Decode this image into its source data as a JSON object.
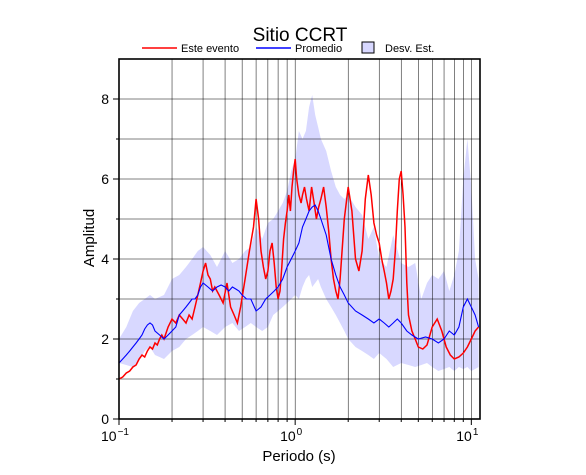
{
  "chart_data": {
    "type": "line",
    "title": "Sitio CCRT",
    "xlabel": "Periodo (s)",
    "ylabel": "Amplitud",
    "xscale": "log",
    "xlim": [
      0.1,
      11.2
    ],
    "ylim": [
      0,
      9
    ],
    "grid": true,
    "legend": "top",
    "x_ticks": [
      {
        "value": 0.1,
        "base": "10",
        "exp": "−1"
      },
      {
        "value": 1,
        "base": "10",
        "exp": "0"
      },
      {
        "value": 10,
        "base": "10",
        "exp": "1"
      }
    ],
    "y_ticks": [
      {
        "value": 0,
        "label": "0"
      },
      {
        "value": 2,
        "label": "2"
      },
      {
        "value": 4,
        "label": "4"
      },
      {
        "value": 6,
        "label": "6"
      },
      {
        "value": 8,
        "label": "8"
      }
    ],
    "legend_entries": [
      {
        "label": "Este evento",
        "color": "#ff0000",
        "kind": "line"
      },
      {
        "label": "Promedio",
        "color": "#0000ff",
        "kind": "line"
      },
      {
        "label": "Desv. Est.",
        "color": "#d8d8ff",
        "kind": "box"
      }
    ],
    "series": [
      {
        "name": "Este evento",
        "color": "#ff0000",
        "x": [
          0.1,
          0.105,
          0.11,
          0.115,
          0.12,
          0.125,
          0.13,
          0.135,
          0.14,
          0.145,
          0.15,
          0.155,
          0.16,
          0.165,
          0.17,
          0.175,
          0.18,
          0.19,
          0.2,
          0.21,
          0.22,
          0.23,
          0.24,
          0.25,
          0.26,
          0.27,
          0.28,
          0.29,
          0.3,
          0.31,
          0.32,
          0.33,
          0.34,
          0.35,
          0.37,
          0.39,
          0.41,
          0.43,
          0.45,
          0.47,
          0.49,
          0.52,
          0.55,
          0.58,
          0.6,
          0.62,
          0.64,
          0.66,
          0.68,
          0.7,
          0.72,
          0.74,
          0.76,
          0.78,
          0.8,
          0.82,
          0.84,
          0.86,
          0.88,
          0.9,
          0.92,
          0.94,
          0.96,
          0.98,
          1.0,
          1.02,
          1.05,
          1.08,
          1.1,
          1.13,
          1.16,
          1.2,
          1.24,
          1.28,
          1.32,
          1.36,
          1.4,
          1.45,
          1.5,
          1.55,
          1.6,
          1.65,
          1.7,
          1.75,
          1.8,
          1.9,
          2.0,
          2.1,
          2.2,
          2.3,
          2.4,
          2.5,
          2.6,
          2.7,
          2.8,
          2.9,
          3.0,
          3.1,
          3.2,
          3.3,
          3.4,
          3.5,
          3.6,
          3.7,
          3.8,
          3.9,
          4.0,
          4.1,
          4.2,
          4.3,
          4.4,
          4.6,
          4.8,
          5.0,
          5.3,
          5.6,
          6.0,
          6.4,
          6.8,
          7.2,
          7.6,
          8.0,
          8.5,
          9.0,
          9.5,
          10.0,
          10.5,
          11.0
        ],
        "y": [
          1.0,
          1.05,
          1.15,
          1.2,
          1.3,
          1.35,
          1.5,
          1.6,
          1.55,
          1.7,
          1.8,
          1.75,
          1.9,
          1.85,
          2.0,
          2.1,
          2.0,
          2.3,
          2.5,
          2.4,
          2.6,
          2.5,
          2.4,
          2.6,
          2.5,
          2.8,
          3.1,
          3.4,
          3.7,
          3.9,
          3.6,
          3.5,
          3.2,
          3.3,
          3.1,
          2.9,
          3.4,
          2.8,
          2.6,
          2.4,
          2.8,
          3.5,
          4.2,
          4.8,
          5.5,
          5.0,
          4.2,
          3.8,
          3.5,
          3.7,
          4.2,
          4.4,
          3.9,
          3.3,
          3.0,
          3.2,
          3.8,
          4.5,
          4.9,
          5.2,
          5.6,
          5.2,
          5.8,
          6.2,
          6.5,
          6.0,
          5.6,
          5.4,
          5.6,
          5.8,
          5.5,
          5.2,
          5.8,
          5.4,
          5.0,
          5.3,
          5.5,
          5.8,
          5.3,
          4.7,
          4.0,
          3.5,
          3.2,
          3.0,
          3.5,
          5.0,
          5.8,
          5.2,
          4.0,
          3.7,
          4.2,
          5.5,
          6.1,
          5.6,
          4.9,
          4.6,
          4.4,
          4.0,
          3.7,
          3.4,
          3.0,
          3.2,
          3.5,
          4.2,
          5.2,
          6.0,
          6.2,
          5.6,
          4.8,
          3.4,
          2.6,
          2.2,
          2.0,
          1.8,
          1.75,
          1.85,
          2.3,
          2.5,
          2.2,
          1.8,
          1.6,
          1.5,
          1.55,
          1.65,
          1.8,
          2.0,
          2.2,
          2.3
        ]
      },
      {
        "name": "Promedio",
        "color": "#0000ff",
        "x": [
          0.1,
          0.105,
          0.11,
          0.115,
          0.12,
          0.125,
          0.13,
          0.135,
          0.14,
          0.145,
          0.15,
          0.155,
          0.16,
          0.17,
          0.18,
          0.19,
          0.2,
          0.21,
          0.22,
          0.23,
          0.24,
          0.25,
          0.26,
          0.27,
          0.28,
          0.29,
          0.3,
          0.32,
          0.34,
          0.36,
          0.38,
          0.4,
          0.42,
          0.44,
          0.46,
          0.48,
          0.5,
          0.53,
          0.56,
          0.6,
          0.64,
          0.68,
          0.72,
          0.76,
          0.8,
          0.85,
          0.9,
          0.95,
          1.0,
          1.05,
          1.1,
          1.15,
          1.2,
          1.25,
          1.3,
          1.35,
          1.4,
          1.5,
          1.6,
          1.7,
          1.8,
          1.9,
          2.0,
          2.2,
          2.4,
          2.6,
          2.8,
          3.0,
          3.2,
          3.4,
          3.6,
          3.8,
          4.0,
          4.3,
          4.6,
          5.0,
          5.5,
          6.0,
          6.5,
          7.0,
          7.5,
          8.0,
          8.5,
          9.0,
          9.5,
          10.0,
          10.5,
          11.0
        ],
        "y": [
          1.4,
          1.5,
          1.6,
          1.7,
          1.8,
          1.9,
          2.0,
          2.1,
          2.25,
          2.35,
          2.4,
          2.35,
          2.2,
          2.1,
          2.0,
          2.1,
          2.2,
          2.3,
          2.6,
          2.7,
          2.8,
          2.9,
          3.0,
          3.0,
          3.1,
          3.3,
          3.4,
          3.3,
          3.2,
          3.3,
          3.35,
          3.3,
          3.2,
          3.3,
          3.25,
          3.2,
          3.1,
          3.0,
          3.0,
          2.7,
          2.8,
          3.0,
          3.1,
          3.2,
          3.3,
          3.5,
          3.8,
          4.0,
          4.2,
          4.4,
          4.8,
          5.0,
          5.2,
          5.3,
          5.35,
          5.2,
          5.0,
          4.6,
          4.0,
          3.6,
          3.3,
          3.1,
          2.9,
          2.7,
          2.6,
          2.5,
          2.4,
          2.5,
          2.4,
          2.3,
          2.4,
          2.5,
          2.4,
          2.2,
          2.1,
          2.0,
          2.05,
          2.0,
          1.9,
          2.0,
          2.2,
          2.1,
          2.3,
          2.8,
          3.0,
          2.8,
          2.6,
          2.3
        ]
      }
    ],
    "std_band": {
      "x": [
        0.1,
        0.11,
        0.12,
        0.13,
        0.14,
        0.15,
        0.16,
        0.18,
        0.2,
        0.22,
        0.24,
        0.26,
        0.28,
        0.3,
        0.33,
        0.36,
        0.4,
        0.44,
        0.48,
        0.52,
        0.56,
        0.6,
        0.65,
        0.7,
        0.75,
        0.8,
        0.85,
        0.9,
        0.95,
        1.0,
        1.05,
        1.1,
        1.15,
        1.2,
        1.25,
        1.3,
        1.35,
        1.4,
        1.5,
        1.6,
        1.7,
        1.8,
        1.9,
        2.0,
        2.2,
        2.4,
        2.6,
        2.8,
        3.0,
        3.3,
        3.6,
        4.0,
        4.4,
        4.8,
        5.2,
        5.6,
        6.0,
        6.5,
        7.0,
        7.5,
        8.0,
        8.5,
        9.0,
        9.5,
        10.0,
        10.5,
        11.0
      ],
      "lower": [
        1.4,
        1.35,
        1.3,
        1.45,
        1.7,
        1.8,
        1.6,
        1.5,
        1.7,
        1.8,
        2.0,
        2.1,
        2.2,
        2.3,
        2.2,
        2.1,
        2.3,
        2.4,
        2.2,
        2.3,
        2.4,
        2.3,
        2.2,
        2.3,
        2.6,
        2.7,
        2.8,
        2.9,
        3.0,
        3.1,
        3.0,
        3.3,
        3.5,
        3.6,
        3.3,
        3.4,
        3.5,
        3.3,
        3.0,
        2.8,
        2.6,
        2.4,
        2.2,
        2.0,
        1.8,
        1.7,
        1.6,
        1.5,
        1.65,
        1.5,
        1.3,
        1.4,
        1.35,
        1.3,
        1.35,
        1.4,
        1.3,
        1.2,
        1.25,
        1.3,
        1.2,
        1.3,
        1.25,
        1.3,
        1.2,
        1.25,
        1.3
      ],
      "upper": [
        2.0,
        2.3,
        2.7,
        2.9,
        3.0,
        3.1,
        3.0,
        3.1,
        3.5,
        3.6,
        3.8,
        4.0,
        4.2,
        4.3,
        4.1,
        3.8,
        4.2,
        3.9,
        4.0,
        4.2,
        4.3,
        4.8,
        4.5,
        4.9,
        5.0,
        5.2,
        5.4,
        5.7,
        6.2,
        6.5,
        7.2,
        7.0,
        7.2,
        7.8,
        8.1,
        7.6,
        7.3,
        7.0,
        6.7,
        6.2,
        5.8,
        5.6,
        5.5,
        5.6,
        5.3,
        5.1,
        4.5,
        4.8,
        4.0,
        3.8,
        4.6,
        3.9,
        3.8,
        3.9,
        3.0,
        3.4,
        3.6,
        3.5,
        3.7,
        3.2,
        3.6,
        4.2,
        6.0,
        7.0,
        5.8,
        4.0,
        3.5
      ]
    }
  }
}
